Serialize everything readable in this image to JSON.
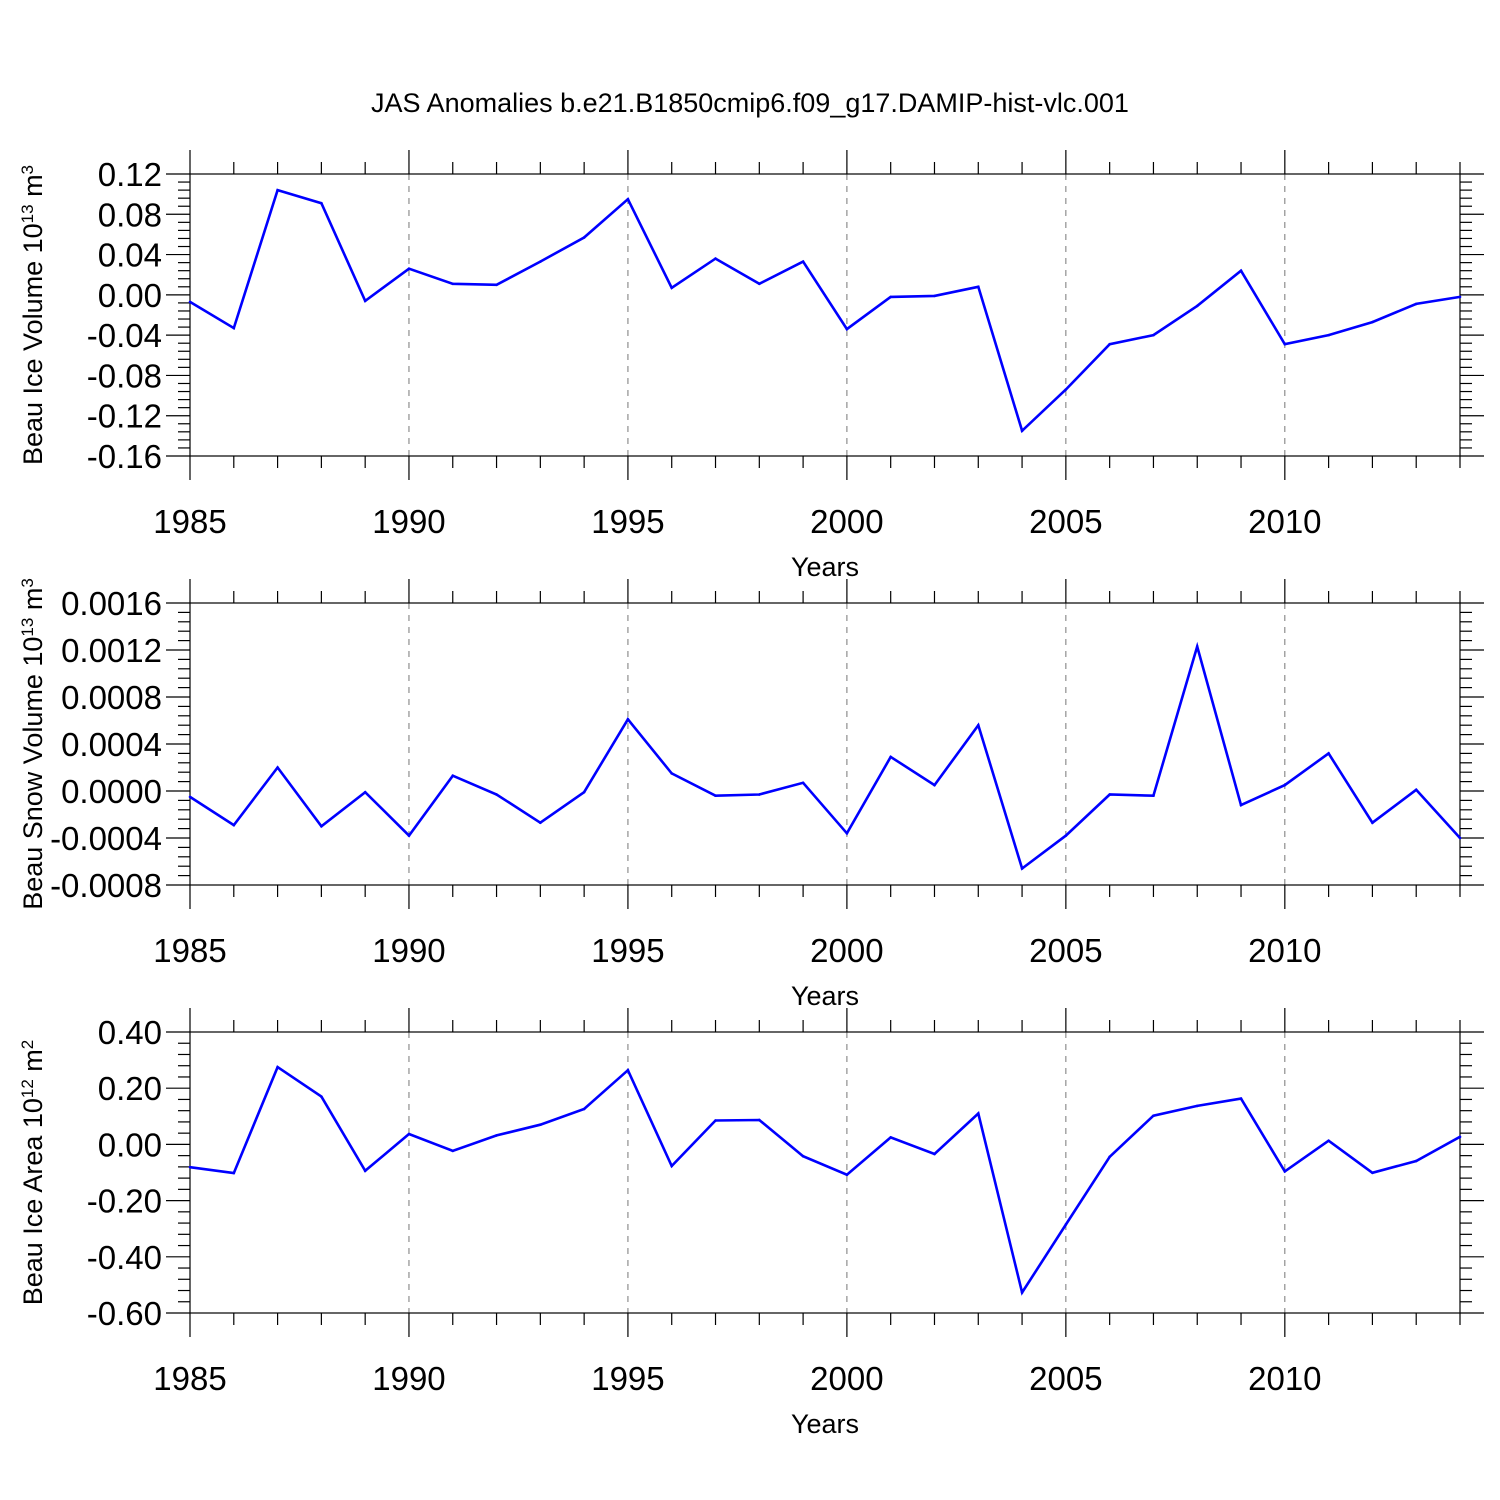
{
  "title": "JAS Anomalies b.e21.B1850cmip6.f09_g17.DAMIP-hist-vlc.001",
  "colors": {
    "line": "#0000ff",
    "axis": "#000000",
    "grid": "#777777"
  },
  "chart_data": [
    {
      "type": "line",
      "xlabel": "Years",
      "ylabel": {
        "text": "Beau Ice Volume 10",
        "sup": "13",
        "unit": " m",
        "unit_sup": "3"
      },
      "xlim": [
        1985,
        2014
      ],
      "ylim": [
        -0.16,
        0.12
      ],
      "xticks": [
        "1985",
        "1990",
        "1995",
        "2000",
        "2005",
        "2010"
      ],
      "yticks": [
        "0.12",
        "0.08",
        "0.04",
        "0.00",
        "-0.04",
        "-0.08",
        "-0.12",
        "-0.16"
      ],
      "grid": "vertical dashed at major x ticks",
      "x": [
        1985,
        1986,
        1987,
        1988,
        1989,
        1990,
        1991,
        1992,
        1993,
        1994,
        1995,
        1996,
        1997,
        1998,
        1999,
        2000,
        2001,
        2002,
        2003,
        2004,
        2005,
        2006,
        2007,
        2008,
        2009,
        2010,
        2011,
        2012,
        2013,
        2014
      ],
      "values": [
        -0.007,
        -0.033,
        0.104,
        0.091,
        -0.006,
        0.026,
        0.011,
        0.01,
        0.033,
        0.057,
        0.095,
        0.007,
        0.036,
        0.011,
        0.033,
        -0.034,
        -0.002,
        -0.001,
        0.008,
        -0.135,
        -0.094,
        -0.049,
        -0.04,
        -0.011,
        0.024,
        -0.049,
        -0.04,
        -0.027,
        -0.009,
        -0.002
      ]
    },
    {
      "type": "line",
      "xlabel": "Years",
      "ylabel": {
        "text": "Beau Snow Volume 10",
        "sup": "13",
        "unit": " m",
        "unit_sup": "3"
      },
      "xlim": [
        1985,
        2014
      ],
      "ylim": [
        -0.0008,
        0.0016
      ],
      "xticks": [
        "1985",
        "1990",
        "1995",
        "2000",
        "2005",
        "2010"
      ],
      "yticks": [
        "0.0016",
        "0.0012",
        "0.0008",
        "0.0004",
        "0.0000",
        "-0.0004",
        "-0.0008"
      ],
      "grid": "vertical dashed at major x ticks",
      "x": [
        1985,
        1986,
        1987,
        1988,
        1989,
        1990,
        1991,
        1992,
        1993,
        1994,
        1995,
        1996,
        1997,
        1998,
        1999,
        2000,
        2001,
        2002,
        2003,
        2004,
        2005,
        2006,
        2007,
        2008,
        2009,
        2010,
        2011,
        2012,
        2013,
        2014
      ],
      "values": [
        -5e-05,
        -0.00029,
        0.0002,
        -0.0003,
        -1e-05,
        -0.00038,
        0.00013,
        -3e-05,
        -0.00027,
        -1e-05,
        0.00061,
        0.00015,
        -4e-05,
        -3e-05,
        7e-05,
        -0.00036,
        0.00029,
        5e-05,
        0.00056,
        -0.00066,
        -0.00038,
        -3e-05,
        -4e-05,
        0.00123,
        -0.00012,
        5e-05,
        0.00032,
        -0.00027,
        1e-05,
        -0.0004
      ]
    },
    {
      "type": "line",
      "xlabel": "Years",
      "ylabel": {
        "text": "Beau Ice Area 10",
        "sup": "12",
        "unit": " m",
        "unit_sup": "2"
      },
      "xlim": [
        1985,
        2014
      ],
      "ylim": [
        -0.6,
        0.4
      ],
      "xticks": [
        "1985",
        "1990",
        "1995",
        "2000",
        "2005",
        "2010"
      ],
      "yticks": [
        "0.40",
        "0.20",
        "0.00",
        "-0.20",
        "-0.40",
        "-0.60"
      ],
      "grid": "vertical dashed at major x ticks",
      "x": [
        1985,
        1986,
        1987,
        1988,
        1989,
        1990,
        1991,
        1992,
        1993,
        1994,
        1995,
        1996,
        1997,
        1998,
        1999,
        2000,
        2001,
        2002,
        2003,
        2004,
        2005,
        2006,
        2007,
        2008,
        2009,
        2010,
        2011,
        2012,
        2013,
        2014
      ],
      "values": [
        -0.081,
        -0.102,
        0.275,
        0.17,
        -0.094,
        0.037,
        -0.023,
        0.032,
        0.07,
        0.126,
        0.264,
        -0.077,
        0.085,
        0.087,
        -0.042,
        -0.108,
        0.025,
        -0.034,
        0.11,
        -0.527,
        -0.285,
        -0.044,
        0.102,
        0.137,
        0.163,
        -0.096,
        0.013,
        -0.101,
        -0.059,
        0.027
      ]
    }
  ]
}
